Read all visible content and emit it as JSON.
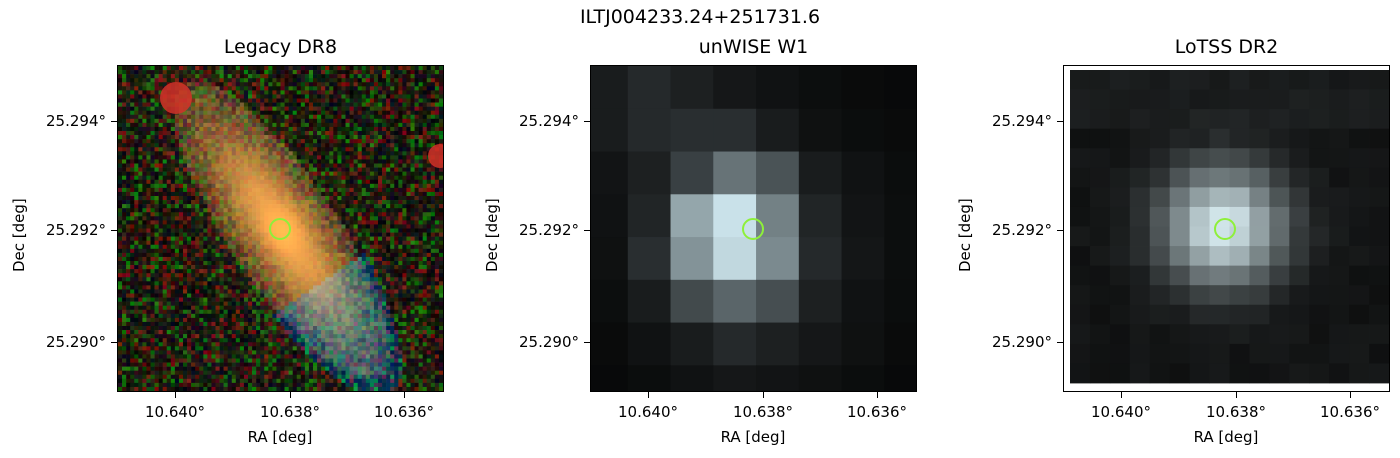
{
  "figure": {
    "suptitle": "ILTJ004233.24+251731.6",
    "marker_color": "#8ef03a"
  },
  "panels": [
    {
      "title": "Legacy DR8",
      "xlabel": "RA [deg]",
      "ylabel": "Dec [deg]",
      "xticks": [
        "10.640°",
        "10.638°",
        "10.636°"
      ],
      "yticks": [
        "25.294°",
        "25.292°",
        "25.290°"
      ],
      "image_kind": "optical-rgb-galaxy",
      "marker_icon": "target-circle-icon"
    },
    {
      "title": "unWISE W1",
      "xlabel": "RA [deg]",
      "ylabel": "Dec [deg]",
      "xticks": [
        "10.640°",
        "10.638°",
        "10.636°"
      ],
      "yticks": [
        "25.294°",
        "25.292°",
        "25.290°"
      ],
      "image_kind": "infrared-grayscale-blob",
      "marker_icon": "target-circle-icon"
    },
    {
      "title": "LoTSS DR2",
      "xlabel": "RA [deg]",
      "ylabel": "Dec [deg]",
      "xticks": [
        "10.640°",
        "10.638°",
        "10.636°"
      ],
      "yticks": [
        "25.294°",
        "25.292°",
        "25.290°"
      ],
      "image_kind": "radio-grayscale-blob",
      "marker_icon": "target-circle-icon"
    }
  ]
}
